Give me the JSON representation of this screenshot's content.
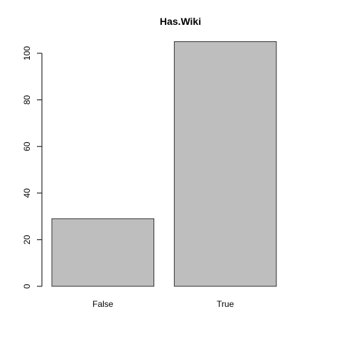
{
  "chart_data": {
    "type": "bar",
    "title": "Has.Wiki",
    "categories": [
      "False",
      "True"
    ],
    "values": [
      29,
      105
    ],
    "xlabel": "",
    "ylabel": "",
    "ylim": [
      0,
      110
    ],
    "yticks": [
      0,
      20,
      40,
      60,
      80,
      100
    ],
    "ytick_labels": [
      "0",
      "20",
      "40",
      "60",
      "80",
      "100"
    ],
    "bar_color": "#bebebe",
    "bar_edge_color": "#333333",
    "grid": false,
    "legend": "none"
  }
}
